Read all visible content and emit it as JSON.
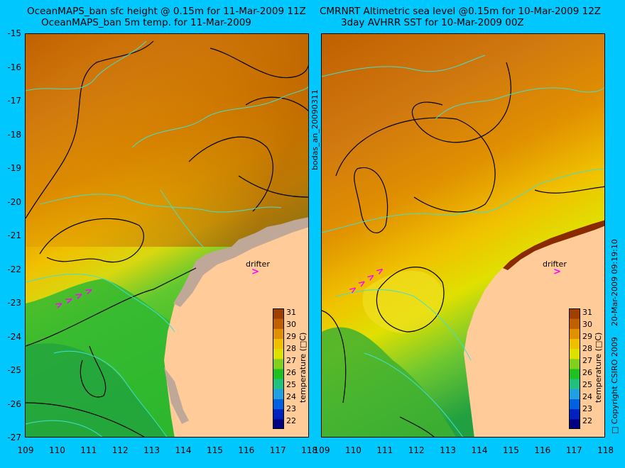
{
  "left_panel": {
    "title_line1": "OceanMAPS_ban sfc height @ 0.15m for 11-Mar-2009 11Z",
    "title_line2": "OceanMAPS_ban 5m temp. for 11-Mar-2009"
  },
  "right_panel": {
    "title_line1": "CMRNRT Altimetric sea level  @0.15m  for 10-Mar-2009 12Z",
    "title_line2": "3day AVHRR SST for 10-Mar-2009 00Z"
  },
  "y_ticks": [
    "-15",
    "-16",
    "-17",
    "-18",
    "-19",
    "-20",
    "-21",
    "-22",
    "-23",
    "-24",
    "-25",
    "-26",
    "-27"
  ],
  "x_ticks_left": [
    "109",
    "110",
    "111",
    "112",
    "113",
    "114",
    "115",
    "116",
    "117",
    "118"
  ],
  "x_ticks_right": [
    "109",
    "110",
    "111",
    "112",
    "113",
    "114",
    "115",
    "116",
    "117",
    "118"
  ],
  "colorbar": {
    "ticks": [
      "31",
      "30",
      "29",
      "28",
      "27",
      "26",
      "25",
      "24",
      "23",
      "22"
    ],
    "label": "temperature (□C)",
    "colors": [
      "#000080",
      "#0020c0",
      "#0060e0",
      "#20a0e0",
      "#20c080",
      "#20c020",
      "#80d020",
      "#e0e000",
      "#f0c000",
      "#e09000",
      "#c06000",
      "#a04000"
    ]
  },
  "drifter_label": "drifter",
  "side_text_middle": "bodas_an_20090311",
  "side_text_right": "20-Mar-2009 09:19:10",
  "copyright": "□ Copyright CSIRO 2009"
}
